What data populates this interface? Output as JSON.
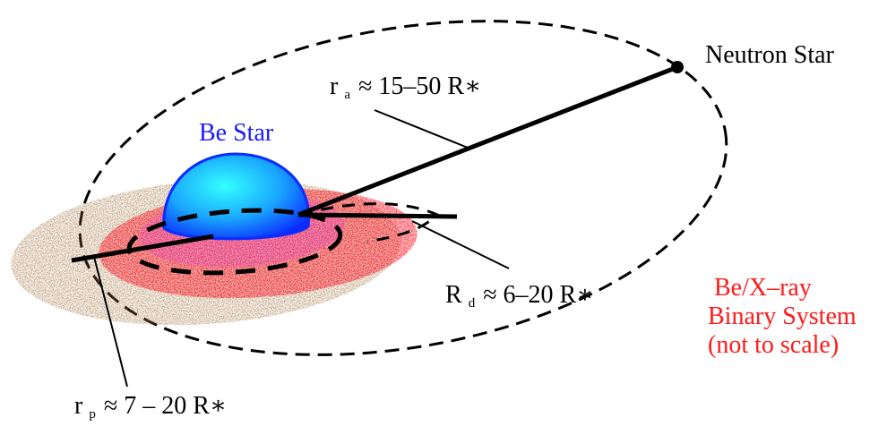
{
  "colors": {
    "star": "#1aa6ff",
    "star_edge": "#0a2cff",
    "star_label": "#1a1aff",
    "system_label": "#ff1a1a",
    "disk_outer": "#a0703a",
    "disk_mid": "#ff1020",
    "disk_inner": "#e040d0",
    "ink": "#000000"
  },
  "labels": {
    "neutron_star": "Neutron Star",
    "be_star": "Be Star",
    "ra": {
      "symbol": "r",
      "sub": "a",
      "value": "≈ 15–50 R∗"
    },
    "rd": {
      "symbol": "R",
      "sub": "d",
      "value": "≈  6–20 R∗"
    },
    "rp": {
      "symbol": "r",
      "sub": "p",
      "value": "≈  7 – 20 R∗"
    },
    "system": [
      "Be/X–ray",
      "Binary System",
      "(not to scale)"
    ]
  }
}
